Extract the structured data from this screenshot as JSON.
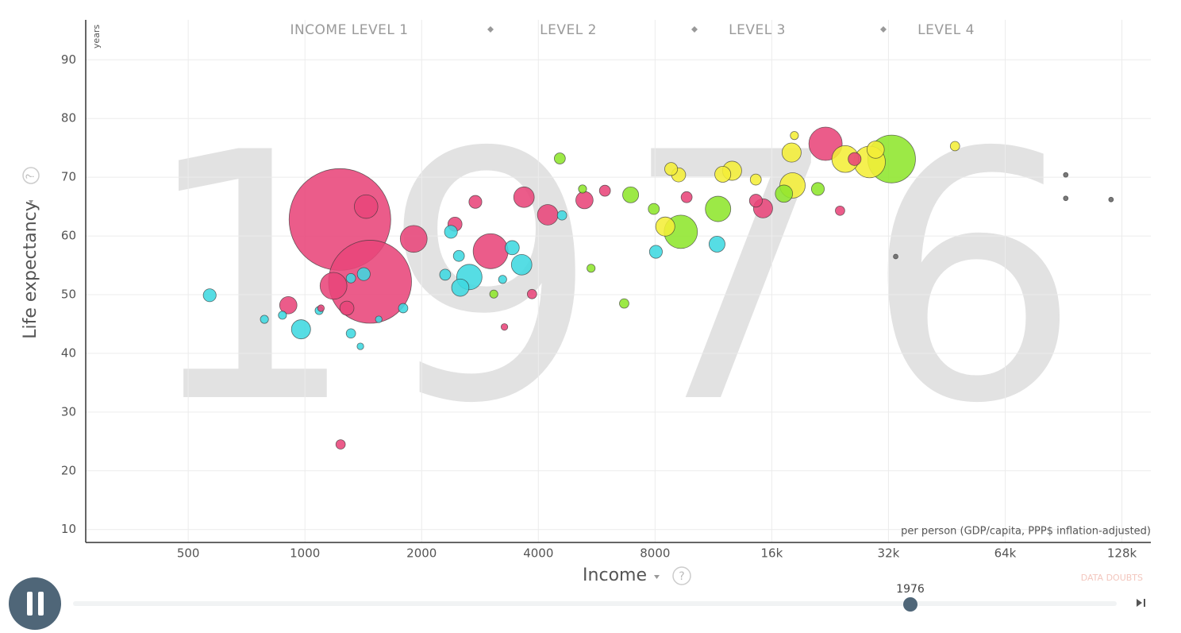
{
  "chart_data": {
    "type": "bubble",
    "year": 1976,
    "income_levels": [
      "INCOME LEVEL 1",
      "LEVEL 2",
      "LEVEL 3",
      "LEVEL 4"
    ],
    "y_label": "Life expectancy",
    "y_unit": "years",
    "x_label": "Income",
    "x_note": "per person (GDP/capita, PPP$ inflation-adjusted)",
    "data_doubts": "DATA DOUBTS",
    "help": "?",
    "x_log": true,
    "grid": true,
    "xlim": [
      272,
      152000
    ],
    "ylim": [
      7.8,
      96.8
    ],
    "xticks": [
      500,
      1000,
      2000,
      4000,
      8000,
      {
        "value": 16000,
        "label": "16k"
      },
      {
        "value": 32000,
        "label": "32k"
      },
      {
        "value": 64000,
        "label": "64k"
      },
      {
        "value": 128000,
        "label": "128k"
      }
    ],
    "yticks": [
      10,
      20,
      30,
      40,
      50,
      60,
      70,
      80,
      90
    ],
    "series": [
      {
        "color": "#e8457a",
        "x": [
          1231,
          1472,
          1438,
          1908,
          1185,
          906,
          1283,
          1236,
          2438,
          2752,
          3013,
          3673,
          4229,
          5260,
          5940,
          3852,
          9650,
          15190,
          14560,
          22020,
          24000,
          26170,
          3270,
          1100
        ],
        "y": [
          62.8,
          52.2,
          65,
          59.5,
          51.5,
          48.2,
          47.7,
          24.5,
          62,
          65.8,
          57.4,
          66.6,
          63.6,
          66.1,
          67.7,
          50.1,
          66.6,
          64.7,
          66,
          75.7,
          64.3,
          73.1,
          44.5,
          47.7
        ],
        "sizes": [
          930,
          620,
          50,
          65,
          65,
          27,
          18,
          8,
          18,
          15,
          110,
          38,
          38,
          27,
          11,
          8,
          11,
          33,
          15,
          100,
          8,
          15,
          4,
          4
        ]
      },
      {
        "color": "#3fd8e0",
        "x": [
          568,
          977,
          786,
          875,
          1418,
          1314,
          1314,
          1390,
          1088,
          1792,
          2300,
          2380,
          2655,
          2516,
          2495,
          3425,
          3622,
          3235,
          4604,
          8040,
          11560,
          1550
        ],
        "y": [
          49.9,
          44.1,
          45.8,
          46.5,
          53.5,
          52.8,
          43.4,
          41.2,
          47.3,
          47.7,
          53.4,
          60.7,
          53,
          51.2,
          56.6,
          58,
          55.1,
          52.6,
          63.5,
          57.3,
          58.6,
          45.8
        ],
        "sizes": [
          15,
          33,
          6,
          6,
          15,
          8,
          8,
          4,
          6,
          8,
          11,
          15,
          58,
          27,
          11,
          18,
          38,
          6,
          8,
          15,
          23,
          4
        ]
      },
      {
        "color": "#8ee62c",
        "x": [
          4544,
          6920,
          7940,
          9320,
          11630,
          17200,
          21040,
          32600,
          6660,
          5470,
          5200,
          3070
        ],
        "y": [
          73.2,
          67,
          64.6,
          60.7,
          64.6,
          67.2,
          68,
          73.1,
          48.5,
          54.5,
          68,
          50.1
        ],
        "sizes": [
          11,
          23,
          11,
          100,
          58,
          27,
          15,
          205,
          8,
          6,
          6,
          6
        ]
      },
      {
        "color": "#f4ee38",
        "x": [
          18100,
          18000,
          24760,
          28600,
          29650,
          12640,
          11960,
          9200,
          8500,
          8800,
          47500,
          14550,
          18300
        ],
        "y": [
          68.6,
          74.2,
          73.1,
          72.6,
          74.7,
          71.1,
          70.5,
          70.4,
          61.6,
          71.4,
          75.3,
          69.6,
          77.1
        ],
        "sizes": [
          58,
          33,
          65,
          90,
          27,
          33,
          23,
          18,
          33,
          15,
          8,
          11,
          6
        ]
      },
      {
        "color": "#666666",
        "x": [
          91700,
          91700,
          120000,
          33400
        ],
        "y": [
          70.4,
          66.4,
          66.2,
          56.5
        ],
        "sizes": [
          2,
          2,
          2,
          2
        ]
      }
    ]
  }
}
